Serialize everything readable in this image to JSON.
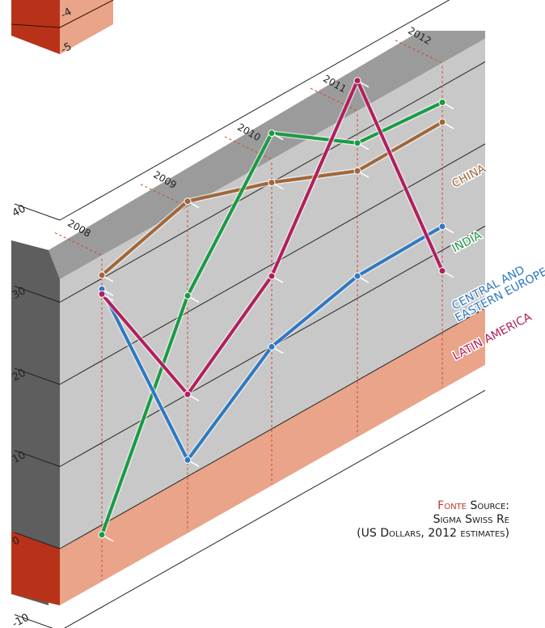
{
  "chart_data": {
    "type": "line",
    "categories": [
      "2008",
      "2009",
      "2010",
      "2011",
      "2012"
    ],
    "ylim": [
      -10,
      40
    ],
    "y_ticks": [
      "-10",
      "0",
      "10",
      "20",
      "30",
      "40"
    ],
    "upper_ticks": [
      "-4",
      "-5"
    ],
    "series": [
      {
        "name": "CHINA",
        "color": "#a0673a",
        "values": [
          30.4,
          33.5,
          30.0,
          25.5,
          25.6
        ]
      },
      {
        "name": "INDIA",
        "color": "#1a9a45",
        "values": [
          -1.2,
          22.0,
          36.0,
          28.9,
          28.0
        ]
      },
      {
        "name": "CENTRAL AND EASTERN EUROPE",
        "color": "#2f79c0",
        "values": [
          28.7,
          2.0,
          10.0,
          12.7,
          12.9
        ]
      },
      {
        "name": "LATIN AMERICA",
        "color": "#b0205e",
        "values": [
          28.1,
          10.0,
          18.6,
          36.5,
          7.5
        ]
      }
    ],
    "label_lines": {
      "CENTRAL AND EASTERN EUROPE": [
        "CENTRAL AND",
        "EASTERN EUROPE"
      ]
    }
  },
  "source": {
    "label_red": "Fonte",
    "label": "Source:",
    "line2": "Sigma Swiss Re",
    "line3": "(US Dollars, 2012 estimates)"
  },
  "colors": {
    "wall": "#c8c8c8",
    "top": "#9b9b9b",
    "side": "#5e5e5e",
    "negative_face": "#e9a489",
    "negative_side": "#b8321a",
    "vgrid": "#d0492a"
  }
}
